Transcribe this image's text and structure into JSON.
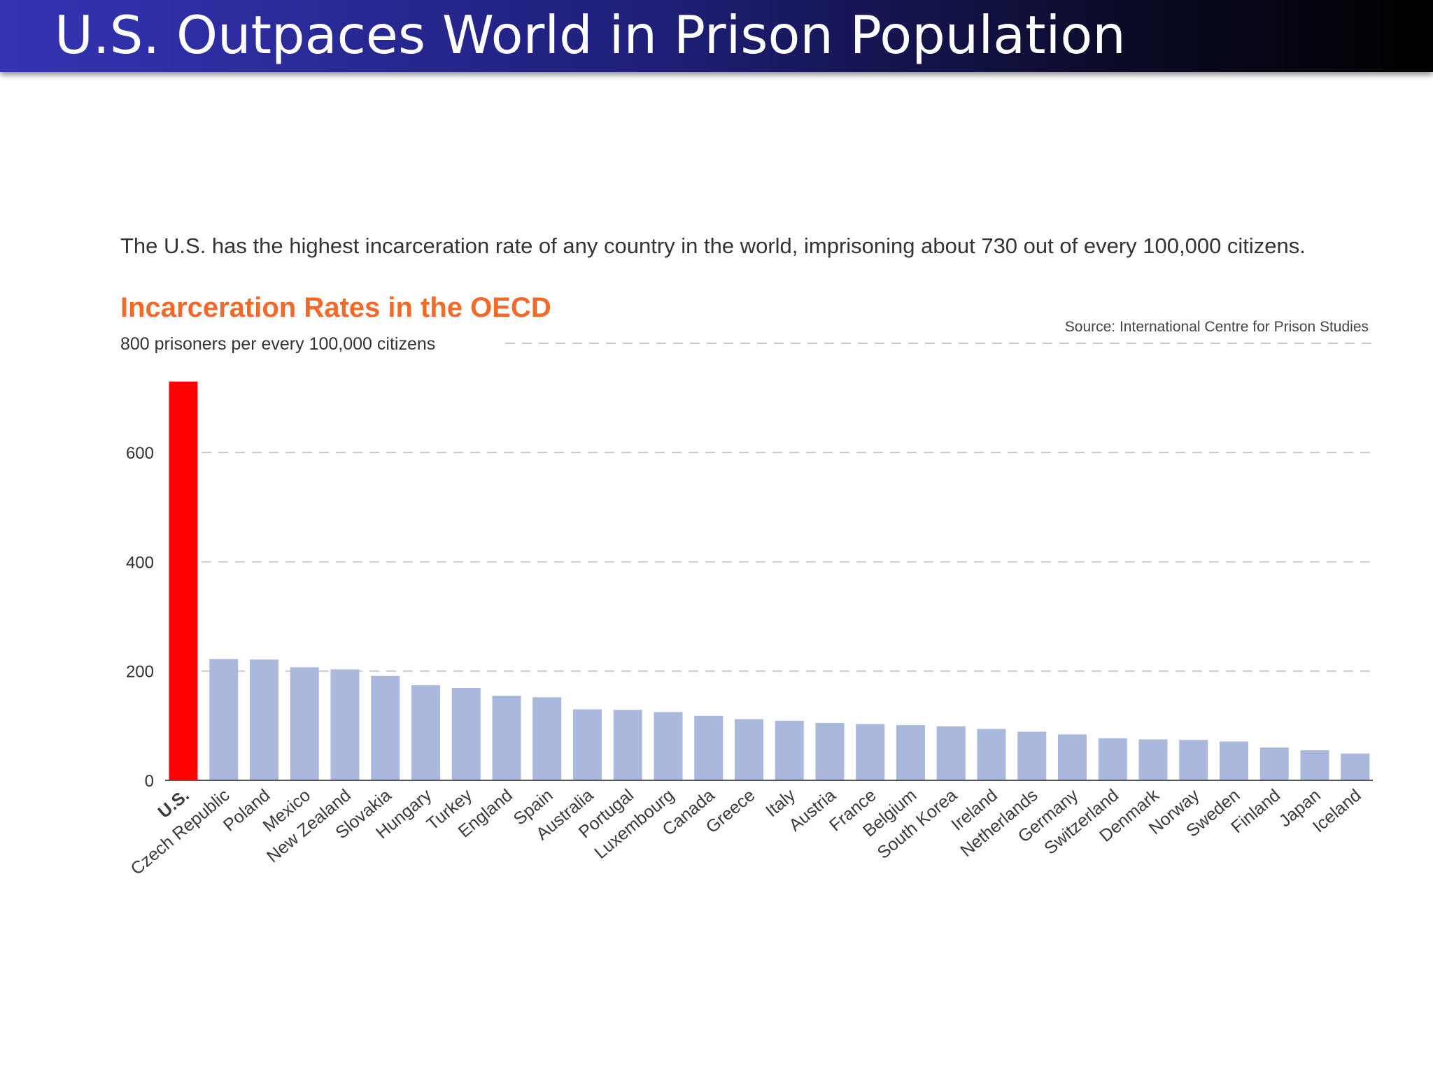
{
  "slide": {
    "title": "U.S. Outpaces World in Prison Population"
  },
  "intro_text": "The U.S. has the highest incarceration rate of any country in the world, imprisoning about 730 out of every 100,000 citizens.",
  "chart_data": {
    "type": "bar",
    "title": "Incarceration Rates in the OECD",
    "source": "Source: International Centre for Prison Studies",
    "top_gridline_label": "800 prisoners per every 100,000 citizens",
    "ylim": [
      0,
      800
    ],
    "yticks": [
      "0",
      "200",
      "400",
      "600"
    ],
    "highlight_color": "#ff0000",
    "bar_color": "#a9b8dc",
    "highlight_label_color": "#e8262a",
    "categories": [
      "U.S.",
      "Czech Republic",
      "Poland",
      "Mexico",
      "New Zealand",
      "Slovakia",
      "Hungary",
      "Turkey",
      "England",
      "Spain",
      "Australia",
      "Portugal",
      "Luxembourg",
      "Canada",
      "Greece",
      "Italy",
      "Austria",
      "France",
      "Belgium",
      "South Korea",
      "Ireland",
      "Netherlands",
      "Germany",
      "Switzerland",
      "Denmark",
      "Norway",
      "Sweden",
      "Finland",
      "Japan",
      "Iceland"
    ],
    "values": [
      730,
      222,
      221,
      207,
      203,
      191,
      174,
      169,
      155,
      152,
      130,
      129,
      125,
      118,
      112,
      109,
      105,
      103,
      101,
      99,
      94,
      89,
      84,
      77,
      75,
      74,
      71,
      60,
      55,
      49
    ],
    "grid": true
  }
}
